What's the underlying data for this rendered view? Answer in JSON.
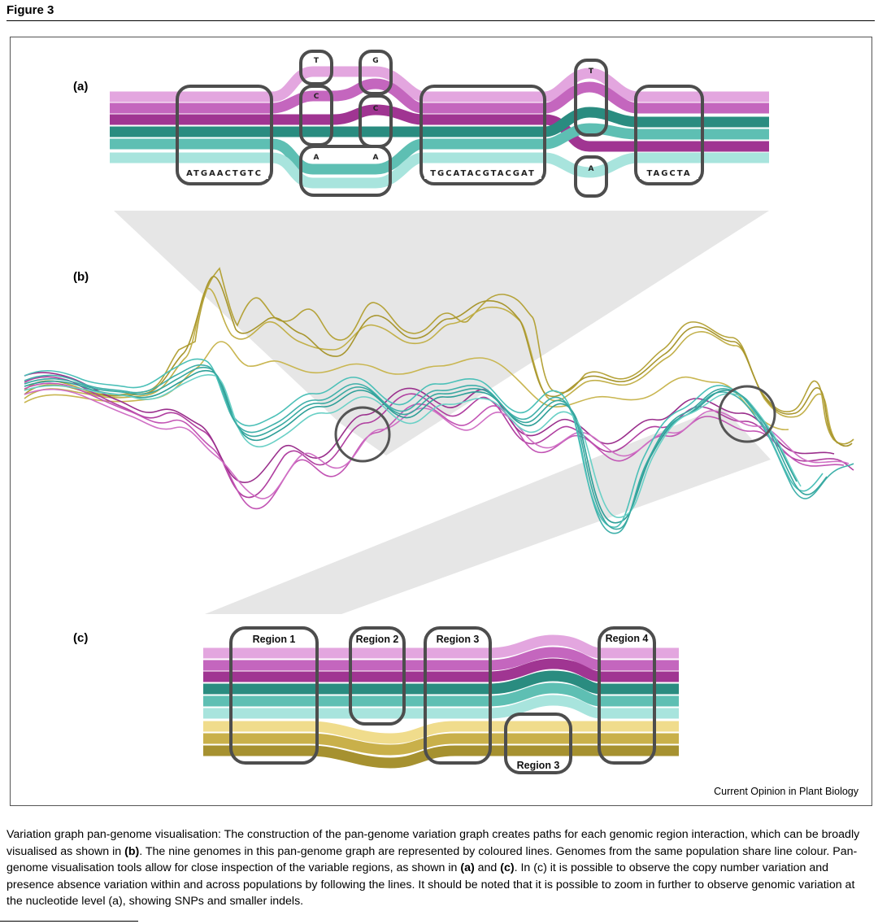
{
  "figure_title": "Figure 3",
  "panels": {
    "a": "(a)",
    "b": "(b)",
    "c": "(c)"
  },
  "panel_a": {
    "sequences": [
      "ATGAACTGTC",
      "TGCATACGTACGAT",
      "TAGCTA"
    ],
    "snp1": {
      "top": "T",
      "mid": "C",
      "bottom": "A"
    },
    "snp2": {
      "top": "G",
      "mid": "C",
      "bottom": "A"
    },
    "snp3": {
      "top": "T",
      "bottom": "A"
    }
  },
  "panel_c": {
    "region1": "Region 1",
    "region2": "Region 2",
    "region3": "Region 3",
    "region4": "Region 4",
    "region3b": "Region 3"
  },
  "colors": {
    "pink_light": "#e3a6df",
    "pink_mid": "#c466be",
    "pink_dark": "#a03592",
    "teal_dark": "#2a8c80",
    "teal_mid": "#5ebfb3",
    "teal_light": "#a8e4dd",
    "gold_light": "#f0dc8c",
    "gold_mid": "#c9b04a",
    "gold_dark": "#a69130",
    "box_stroke": "#4d4d4d"
  },
  "credit": "Current Opinion in Plant Biology",
  "caption": {
    "p1": "Variation graph pan-genome visualisation: The construction of the pan-genome variation graph creates paths for each genomic region interaction, which can be broadly visualised as shown in ",
    "b1": "(b)",
    "p2": ". The nine genomes in this pan-genome graph are represented by coloured lines. Genomes from the same population share line colour. Pan-genome visualisation tools allow for close inspection of the variable regions, as shown in ",
    "b2": "(a)",
    "p3": " and ",
    "b3": "(c)",
    "p4": ". In (c) it is possible to observe the copy number variation and presence absence variation within and across populations by following the lines. It should be noted that it is possible to zoom in further to observe genomic variation at the nucleotide level (a), showing SNPs and smaller indels."
  }
}
